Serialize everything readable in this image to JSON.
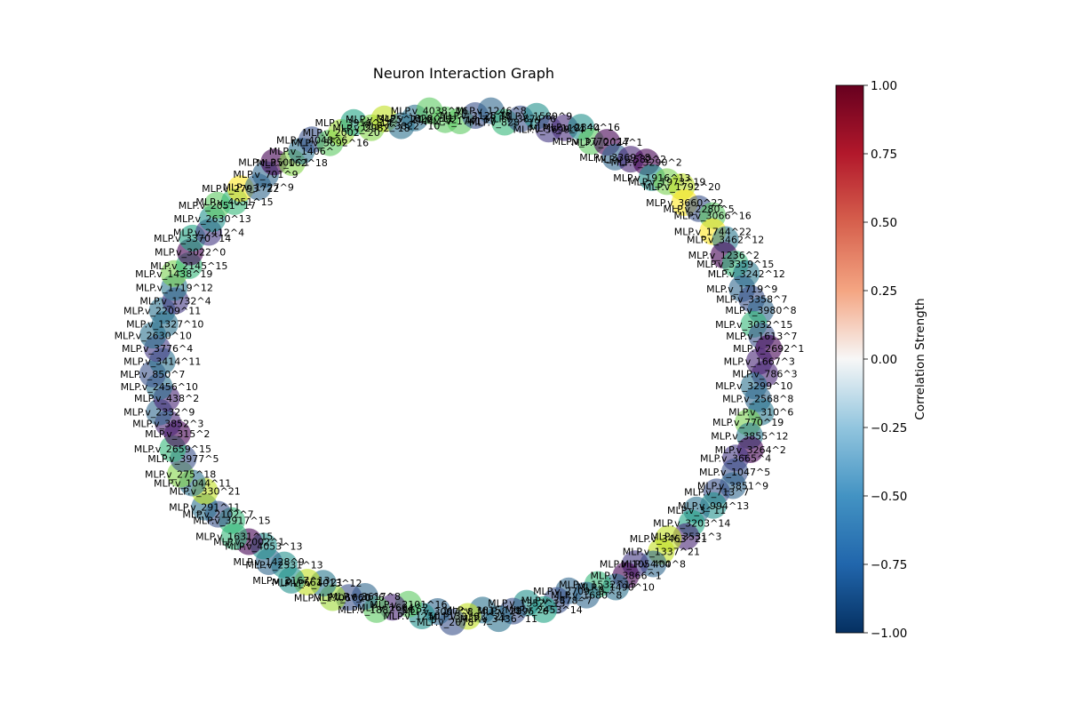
{
  "chart_data": {
    "type": "network",
    "title": "Neuron Interaction Graph",
    "node_colormap": "viridis",
    "colorbar": {
      "label": "Correlation Strength",
      "colormap": "RdBu_r",
      "range": [
        -1.0,
        1.0
      ],
      "ticks": [
        -1.0,
        -0.75,
        -0.5,
        -0.25,
        0.0,
        0.25,
        0.5,
        0.75,
        1.0
      ],
      "tick_labels": [
        "−1.00",
        "−0.75",
        "−0.50",
        "−0.25",
        "0.00",
        "0.25",
        "0.50",
        "0.75",
        "1.00"
      ]
    },
    "nodes": [
      {
        "label": "MLP.v_1741^7",
        "color": "#5ec962"
      },
      {
        "label": "MLP.v_2125^8",
        "color": "#3b528b"
      },
      {
        "label": "MLP.v_1246^8",
        "color": "#31688e"
      },
      {
        "label": "MLP.v_828^19",
        "color": "#35b779"
      },
      {
        "label": "MLP.v_3874^6",
        "color": "#3b528b"
      },
      {
        "label": "MLP.v_1589^9",
        "color": "#21918c"
      },
      {
        "label": "MLP.v_3699^4",
        "color": "#443983"
      },
      {
        "label": "MLP.v_1101^4",
        "color": "#472c7a"
      },
      {
        "label": "MLP.v_2340^16",
        "color": "#21918c"
      },
      {
        "label": "MLP.v_3770^17",
        "color": "#5ec962"
      },
      {
        "label": "MLP.v_2024^1",
        "color": "#440154"
      },
      {
        "label": "MLP.v_3369^8",
        "color": "#31688e"
      },
      {
        "label": "MLP.v_2582^2",
        "color": "#482475"
      },
      {
        "label": "MLP.v_3290^2",
        "color": "#440154"
      },
      {
        "label": "MLP.v_1916^13",
        "color": "#21918c"
      },
      {
        "label": "MLP.v_1973^19",
        "color": "#7ad151"
      },
      {
        "label": "MLP.v_1792^20",
        "color": "#bddf26"
      },
      {
        "label": "MLP.v_3660^22",
        "color": "#fde725"
      },
      {
        "label": "MLP.v_2280^5",
        "color": "#3b528b"
      },
      {
        "label": "MLP.v_3066^16",
        "color": "#5ec962"
      },
      {
        "label": "MLP.v_1744^22",
        "color": "#fde725"
      },
      {
        "label": "MLP.v_3462^12",
        "color": "#2a788e"
      },
      {
        "label": "MLP.v_1236^2",
        "color": "#440154"
      },
      {
        "label": "MLP.v_3359^15",
        "color": "#35b779"
      },
      {
        "label": "MLP.v_3242^12",
        "color": "#2a788e"
      },
      {
        "label": "MLP.v_1719^9",
        "color": "#31688e"
      },
      {
        "label": "MLP.v_3358^7",
        "color": "#3b528b"
      },
      {
        "label": "MLP.v_3980^8",
        "color": "#31688e"
      },
      {
        "label": "MLP.v_3032^15",
        "color": "#35b779"
      },
      {
        "label": "MLP.v_1613^7",
        "color": "#3b528b"
      },
      {
        "label": "MLP.v_2692^1",
        "color": "#440154"
      },
      {
        "label": "MLP.v_1667^3",
        "color": "#482475"
      },
      {
        "label": "MLP.v_786^3",
        "color": "#482475"
      },
      {
        "label": "MLP.v_3299^10",
        "color": "#2c728e"
      },
      {
        "label": "MLP.v_2568^8",
        "color": "#31688e"
      },
      {
        "label": "MLP.v_310^6",
        "color": "#2a788e"
      },
      {
        "label": "MLP.v_770^19",
        "color": "#7ad151"
      },
      {
        "label": "MLP.v_3855^12",
        "color": "#2a788e"
      },
      {
        "label": "MLP.v_3264^2",
        "color": "#440154"
      },
      {
        "label": "MLP.v_3665^4",
        "color": "#443983"
      },
      {
        "label": "MLP.v_1047^5",
        "color": "#3b528b"
      },
      {
        "label": "MLP.v_3851^9",
        "color": "#31688e"
      },
      {
        "label": "MLP.v_713^7",
        "color": "#3b528b"
      },
      {
        "label": "MLP.v_994^13",
        "color": "#21918c"
      },
      {
        "label": "MLP.v_3^11",
        "color": "#2c728e"
      },
      {
        "label": "MLP.v_3203^14",
        "color": "#21a585"
      },
      {
        "label": "MLP.v_3531^3",
        "color": "#482475"
      },
      {
        "label": "MLP.v_3463^21",
        "color": "#c2df23"
      },
      {
        "label": "MLP.v_1337^21",
        "color": "#c2df23"
      },
      {
        "label": "MLP.v_400^8",
        "color": "#31688e"
      },
      {
        "label": "MLP.v_1054^4",
        "color": "#443983"
      },
      {
        "label": "MLP.v_3866^1",
        "color": "#440154"
      },
      {
        "label": "MLP.v_1490^10",
        "color": "#2c728e"
      },
      {
        "label": "MLP.v_1532^15",
        "color": "#35b779"
      },
      {
        "label": "MLP.v_1680^8",
        "color": "#31688e"
      },
      {
        "label": "MLP.v_2709^9",
        "color": "#31688e"
      },
      {
        "label": "MLP.v_3878^7",
        "color": "#3b528b"
      },
      {
        "label": "MLP.v_2453^14",
        "color": "#21a585"
      },
      {
        "label": "MLP.v_1352^13",
        "color": "#21918c"
      },
      {
        "label": "MLP.v_2895^6",
        "color": "#3b528b"
      },
      {
        "label": "MLP.v_3436^11",
        "color": "#2c728e"
      },
      {
        "label": "MLP.v_3615^11",
        "color": "#2c728e"
      },
      {
        "label": "MLP.v_3393^21",
        "color": "#c2df23"
      },
      {
        "label": "MLP.v_2078^7",
        "color": "#3b528b"
      },
      {
        "label": "MLP.v_3007^8",
        "color": "#31688e"
      },
      {
        "label": "MLP.v_1250^13",
        "color": "#21918c"
      },
      {
        "label": "MLP.v_2101^16",
        "color": "#5ec962"
      },
      {
        "label": "MLP.v_1604^2",
        "color": "#482475"
      },
      {
        "label": "MLP.v_1882^16",
        "color": "#5ec962"
      },
      {
        "label": "MLP.v_3617^8",
        "color": "#31688e"
      },
      {
        "label": "MLP.v_1660^6",
        "color": "#3b528b"
      },
      {
        "label": "MLP.v_1706^20",
        "color": "#a0da39"
      },
      {
        "label": "MLP.v_4013^12",
        "color": "#2a788e"
      },
      {
        "label": "MLP.v_661^21",
        "color": "#c2df23"
      },
      {
        "label": "MLP.v_2167^13",
        "color": "#21918c"
      },
      {
        "label": "MLP.v_2531^13",
        "color": "#21918c"
      },
      {
        "label": "MLP.v_1428^9",
        "color": "#31688e"
      },
      {
        "label": "MLP.v_4053^13",
        "color": "#21918c"
      },
      {
        "label": "MLP.v_2002^1",
        "color": "#440154"
      },
      {
        "label": "MLP.v_1631^15",
        "color": "#35b779"
      },
      {
        "label": "MLP.v_3917^15",
        "color": "#35b779"
      },
      {
        "label": "MLP.v_2102^7",
        "color": "#3b528b"
      },
      {
        "label": "MLP.v_291^11",
        "color": "#2c728e"
      },
      {
        "label": "MLP.v_330^21",
        "color": "#c2df23"
      },
      {
        "label": "MLP.v_1044^11",
        "color": "#2c728e"
      },
      {
        "label": "MLP.v_275^18",
        "color": "#86d549"
      },
      {
        "label": "MLP.v_3977^5",
        "color": "#3b528b"
      },
      {
        "label": "MLP.v_2659^15",
        "color": "#35b779"
      },
      {
        "label": "MLP.v_315^2",
        "color": "#440154"
      },
      {
        "label": "MLP.v_3852^3",
        "color": "#482475"
      },
      {
        "label": "MLP.v_2332^9",
        "color": "#31688e"
      },
      {
        "label": "MLP.v_438^2",
        "color": "#482475"
      },
      {
        "label": "MLP.v_2456^10",
        "color": "#2c728e"
      },
      {
        "label": "MLP.v_850^7",
        "color": "#3b528b"
      },
      {
        "label": "MLP.v_3414^11",
        "color": "#2c728e"
      },
      {
        "label": "MLP.v_3776^4",
        "color": "#443983"
      },
      {
        "label": "MLP.v_2630^10",
        "color": "#2c728e"
      },
      {
        "label": "MLP.v_1327^10",
        "color": "#2c728e"
      },
      {
        "label": "MLP.v_2209^11",
        "color": "#2c728e"
      },
      {
        "label": "MLP.v_1732^4",
        "color": "#443983"
      },
      {
        "label": "MLP.v_1719^12",
        "color": "#2a788e"
      },
      {
        "label": "MLP.v_1438^19",
        "color": "#7ad151"
      },
      {
        "label": "MLP.v_2145^15",
        "color": "#35b779"
      },
      {
        "label": "MLP.v_3022^0",
        "color": "#440154"
      },
      {
        "label": "MLP.v_3370^14",
        "color": "#21a585"
      },
      {
        "label": "MLP.v_2412^4",
        "color": "#443983"
      },
      {
        "label": "MLP.v_2630^13",
        "color": "#21918c"
      },
      {
        "label": "MLP.v_2051^17",
        "color": "#5ec962"
      },
      {
        "label": "MLP.v_4051^15",
        "color": "#35b779"
      },
      {
        "label": "MLP.v_2793^22",
        "color": "#fde725"
      },
      {
        "label": "MLP.v_1727^9",
        "color": "#31688e"
      },
      {
        "label": "MLP.v_701^9",
        "color": "#31688e"
      },
      {
        "label": "MLP.v_3500^1",
        "color": "#440154"
      },
      {
        "label": "MLP.v_162^18",
        "color": "#86d549"
      },
      {
        "label": "MLP.v_1406^",
        "color": "#2c728e"
      },
      {
        "label": "MLP.v_4048^6",
        "color": "#3b528b"
      },
      {
        "label": "MLP.v_3692^16",
        "color": "#5ec962"
      },
      {
        "label": "MLP.v_2002^20",
        "color": "#a0da39"
      },
      {
        "label": "MLP.v_3916^14",
        "color": "#21a585"
      },
      {
        "label": "MLP.v_2982^18",
        "color": "#86d549"
      },
      {
        "label": "MLP.v_3425^21",
        "color": "#c2df23"
      },
      {
        "label": "MLP.v_3822^10",
        "color": "#2c728e"
      },
      {
        "label": "MLP.v_1828^11",
        "color": "#2c728e"
      },
      {
        "label": "MLP.v_4038^16",
        "color": "#5ec962"
      },
      {
        "label": "MLP.v_52^17",
        "color": "#5ec962"
      }
    ]
  }
}
